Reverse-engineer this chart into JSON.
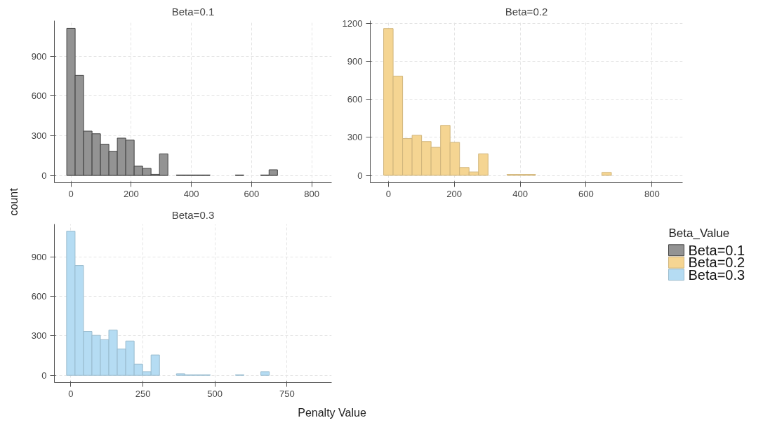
{
  "chart_data": [
    {
      "type": "histogram",
      "title": "Beta=0.1",
      "ylabel": "count",
      "grid": true,
      "legend": "right",
      "legend_title": "Beta_Value",
      "bins": [
        -14,
        14,
        42,
        70,
        98,
        126,
        154,
        182,
        210,
        238,
        266,
        294,
        322,
        350,
        378,
        406,
        434,
        462,
        490,
        518,
        546,
        574,
        602,
        630,
        658,
        686,
        714,
        742,
        770,
        798,
        826
      ],
      "series": [
        {
          "name": "Beta=0.1",
          "color": "#939393",
          "values": [
            1112,
            757,
            335,
            315,
            236,
            182,
            282,
            267,
            70,
            53,
            9,
            163,
            0,
            3,
            3,
            3,
            3,
            0,
            0,
            0,
            3,
            0,
            0,
            3,
            43,
            0,
            0,
            0,
            0,
            0
          ]
        }
      ],
      "xlim": [
        -55,
        866
      ],
      "ylim": [
        -55,
        1170
      ],
      "xticks": [
        0,
        200,
        400,
        600,
        800
      ],
      "yticks": [
        0,
        300,
        600,
        900
      ]
    },
    {
      "type": "histogram",
      "title": "Beta=0.2",
      "grid": true,
      "legend": "right",
      "bins": [
        -14.4,
        14.4,
        43.2,
        72,
        100.8,
        129.6,
        158.4,
        187.2,
        216,
        244.8,
        273.6,
        302.4,
        331.2,
        360,
        388.8,
        417.6,
        446.4,
        475.2,
        504,
        532.8,
        561.6,
        590.4,
        619.2,
        648,
        676.8,
        705.6,
        734.4,
        763.2,
        792,
        820.8,
        849.6
      ],
      "series": [
        {
          "name": "Beta=0.2",
          "color": "#f5d592",
          "values": [
            1158,
            783,
            290,
            316,
            267,
            221,
            394,
            260,
            62,
            27,
            170,
            0,
            0,
            8,
            8,
            8,
            0,
            0,
            0,
            0,
            0,
            0,
            0,
            23,
            0,
            0,
            0,
            0,
            0,
            0
          ]
        }
      ],
      "xlim": [
        -55,
        893
      ],
      "ylim": [
        -58,
        1220
      ],
      "xticks": [
        0,
        200,
        400,
        600,
        800
      ],
      "yticks": [
        0,
        300,
        600,
        900,
        1200
      ]
    },
    {
      "type": "histogram",
      "title": "Beta=0.3",
      "xlabel": "Penalty Value",
      "grid": true,
      "legend": "right",
      "bins": [
        -14.65,
        14.65,
        43.95,
        73.25,
        102.55,
        131.85,
        161.15,
        190.45,
        219.75,
        249.05,
        278.35,
        307.65,
        336.95,
        366.25,
        395.55,
        424.85,
        454.15,
        483.45,
        512.75,
        542.05,
        571.35,
        600.65,
        629.95,
        659.25,
        688.55,
        717.85,
        747.15,
        776.45,
        805.75,
        835.05,
        864.35
      ],
      "series": [
        {
          "name": "Beta=0.3",
          "color": "#b5dcf3",
          "values": [
            1096,
            835,
            334,
            304,
            271,
            344,
            200,
            261,
            85,
            28,
            155,
            0,
            0,
            12,
            4,
            4,
            4,
            0,
            0,
            0,
            4,
            0,
            0,
            28,
            0,
            0,
            0,
            0,
            0,
            0
          ]
        }
      ],
      "xlim": [
        -57,
        905
      ],
      "ylim": [
        -55,
        1150
      ],
      "xticks": [
        0,
        250,
        500,
        750
      ],
      "yticks": [
        0,
        300,
        600,
        900
      ]
    }
  ]
}
